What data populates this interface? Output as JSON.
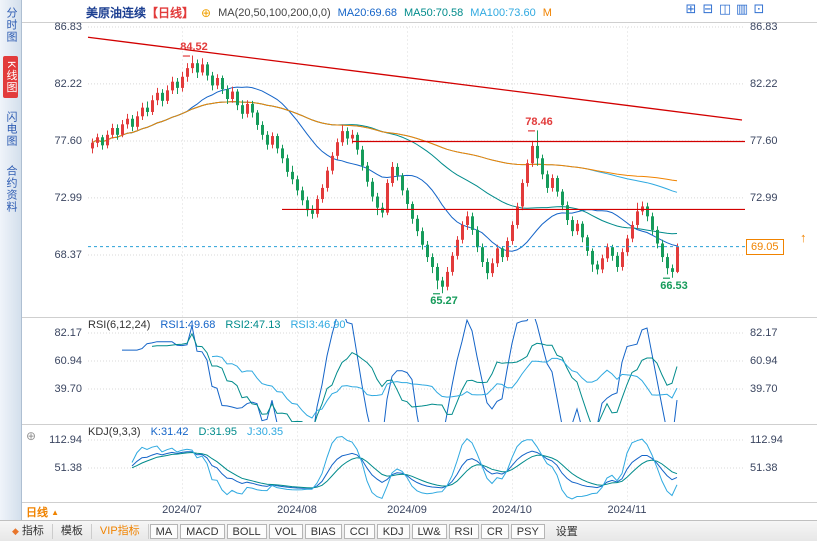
{
  "colors": {
    "up": "#e23b3b",
    "down": "#159b5a",
    "ma20": "#1464c8",
    "ma50": "#008b8b",
    "ma100": "#2fa9e0",
    "ma200": "#f08300",
    "trend": "#d20000",
    "price_line": "#2aa0d8",
    "accent": "#f08300",
    "active_sidebar": "#e23b3b"
  },
  "icons": {
    "add": "⊕",
    "price_arrow": "↑",
    "period_arrow": "▲",
    "diamond": "◆",
    "layout": [
      "⊞",
      "⊟",
      "◫",
      "▥",
      "⊡"
    ]
  },
  "sidebar": {
    "items": [
      {
        "label": "分时图"
      },
      {
        "label": "K线图"
      },
      {
        "label": "闪电图"
      },
      {
        "label": "合约资料"
      }
    ]
  },
  "header": {
    "title": "美原油连续",
    "period": "【日线】",
    "indicator": "MA(20,50,100,200,0,0)",
    "ma20": "MA20:69.68",
    "ma50": "MA50:70.58",
    "ma100": "MA100:73.60",
    "ma200": "M"
  },
  "main_chart": {
    "axis_left": [
      "86.83",
      "82.22",
      "77.60",
      "72.99",
      "68.37"
    ],
    "axis_right": [
      "86.83",
      "82.22",
      "77.60",
      "72.99"
    ]
  },
  "rsi_panel": {
    "title": "RSI(6,12,24)",
    "rsi1": "RSI1:49.68",
    "rsi2": "RSI2:47.13",
    "rsi3": "RSI3:46.90",
    "axis": [
      "82.17",
      "60.94",
      "39.70"
    ]
  },
  "kdj_panel": {
    "title": "KDJ(9,3,3)",
    "k": "K:31.42",
    "d": "D:31.95",
    "j": "J:30.35",
    "axis": [
      "112.94",
      "51.38"
    ]
  },
  "x_axis": {
    "labels": [
      "2024/07",
      "2024/08",
      "2024/09",
      "2024/10",
      "2024/11"
    ]
  },
  "bottom_left": {
    "period": "日线"
  },
  "bottom_bar": {
    "tabs": [
      "指标",
      "模板",
      "VIP指标"
    ],
    "buttons": [
      "MA",
      "MACD",
      "BOLL",
      "VOL",
      "BIAS",
      "CCI",
      "KDJ",
      "LW&",
      "RSI",
      "CR",
      "PSY"
    ],
    "settings": "设置"
  },
  "chart_data": {
    "type": "candlestick",
    "title": "美原油连续 日线",
    "y_ticks": [
      86.83,
      82.22,
      77.6,
      72.99,
      68.37
    ],
    "rsi_ticks": [
      82.17,
      60.94,
      39.7
    ],
    "kdj_ticks": [
      112.94,
      51.38
    ],
    "x_ticks": [
      {
        "label": "2024/07",
        "index": 18
      },
      {
        "label": "2024/08",
        "index": 41
      },
      {
        "label": "2024/09",
        "index": 63
      },
      {
        "label": "2024/10",
        "index": 84
      },
      {
        "label": "2024/11",
        "index": 107
      }
    ],
    "current_price": 69.05,
    "key_points": [
      {
        "label": "84.52",
        "price": 84.52,
        "index": 20,
        "side": "above",
        "color": "up"
      },
      {
        "label": "78.46",
        "price": 78.46,
        "index": 89,
        "side": "above",
        "color": "up"
      },
      {
        "label": "65.27",
        "price": 65.27,
        "index": 70,
        "side": "below",
        "color": "down"
      },
      {
        "label": "66.53",
        "price": 66.53,
        "index": 116,
        "side": "below",
        "color": "down"
      }
    ],
    "ma_overlays": [
      {
        "name": "MA20",
        "period": 20
      },
      {
        "name": "MA50",
        "period": 50
      },
      {
        "name": "MA100",
        "period": 100
      },
      {
        "name": "MA200",
        "period": 200
      }
    ],
    "indicators": {
      "rsi_periods": [
        6,
        12,
        24
      ],
      "kdj_params": [
        9,
        3,
        3
      ]
    },
    "trendlines": [
      {
        "from_index": -1,
        "from_price": 86.0,
        "to_index": 130,
        "to_price": 79.3
      }
    ],
    "hlines": [
      {
        "price": 77.6,
        "from_index": 52
      },
      {
        "price": 72.1,
        "from_index": 38
      }
    ],
    "candles": [
      [
        77.0,
        77.8,
        76.6,
        77.45
      ],
      [
        77.45,
        78.2,
        77.1,
        77.9
      ],
      [
        77.9,
        78.1,
        76.9,
        77.25
      ],
      [
        77.25,
        78.45,
        77.0,
        78.1
      ],
      [
        78.1,
        79.0,
        77.8,
        78.65
      ],
      [
        78.65,
        78.95,
        77.7,
        78.1
      ],
      [
        78.1,
        79.3,
        77.9,
        78.95
      ],
      [
        78.95,
        79.8,
        78.6,
        79.4
      ],
      [
        79.4,
        79.7,
        78.4,
        78.75
      ],
      [
        78.75,
        80.0,
        78.5,
        79.6
      ],
      [
        79.6,
        80.7,
        79.3,
        80.3
      ],
      [
        80.3,
        80.8,
        79.6,
        79.95
      ],
      [
        79.95,
        81.3,
        79.7,
        80.9
      ],
      [
        80.9,
        81.9,
        80.5,
        81.5
      ],
      [
        81.5,
        81.8,
        80.4,
        80.85
      ],
      [
        80.85,
        82.1,
        80.6,
        81.7
      ],
      [
        81.7,
        82.8,
        81.4,
        82.4
      ],
      [
        82.4,
        82.7,
        81.4,
        81.9
      ],
      [
        81.9,
        83.2,
        81.6,
        82.8
      ],
      [
        82.8,
        83.9,
        82.4,
        83.5
      ],
      [
        83.5,
        84.52,
        83.1,
        83.9
      ],
      [
        83.9,
        84.2,
        82.7,
        83.15
      ],
      [
        83.15,
        84.3,
        82.9,
        83.8
      ],
      [
        83.8,
        84.0,
        82.5,
        82.9
      ],
      [
        82.9,
        83.2,
        81.7,
        82.1
      ],
      [
        82.1,
        83.0,
        81.8,
        82.7
      ],
      [
        82.7,
        82.9,
        81.4,
        81.8
      ],
      [
        81.8,
        82.1,
        80.6,
        81.0
      ],
      [
        81.0,
        82.0,
        80.7,
        81.6
      ],
      [
        81.6,
        81.8,
        80.1,
        80.5
      ],
      [
        80.5,
        80.9,
        79.4,
        79.8
      ],
      [
        79.8,
        80.9,
        79.5,
        80.6
      ],
      [
        80.6,
        80.85,
        79.5,
        79.9
      ],
      [
        79.9,
        80.1,
        78.5,
        78.9
      ],
      [
        78.9,
        79.2,
        77.7,
        78.1
      ],
      [
        78.1,
        78.4,
        76.9,
        77.3
      ],
      [
        77.3,
        78.3,
        77.0,
        78.0
      ],
      [
        78.0,
        78.2,
        76.6,
        77.0
      ],
      [
        77.0,
        77.3,
        75.8,
        76.2
      ],
      [
        76.2,
        76.5,
        74.7,
        75.1
      ],
      [
        75.1,
        75.6,
        74.1,
        74.5
      ],
      [
        74.5,
        74.8,
        73.2,
        73.6
      ],
      [
        73.6,
        73.9,
        72.4,
        72.8
      ],
      [
        72.8,
        73.1,
        71.5,
        72.0
      ],
      [
        72.0,
        72.4,
        71.3,
        71.7
      ],
      [
        71.7,
        73.2,
        71.4,
        72.9
      ],
      [
        72.9,
        74.1,
        72.6,
        73.8
      ],
      [
        73.8,
        75.5,
        73.5,
        75.2
      ],
      [
        75.2,
        76.7,
        74.9,
        76.4
      ],
      [
        76.4,
        77.8,
        76.1,
        77.5
      ],
      [
        77.5,
        78.9,
        77.2,
        78.4
      ],
      [
        78.4,
        78.7,
        77.3,
        77.8
      ],
      [
        77.8,
        78.5,
        77.4,
        78.1
      ],
      [
        78.1,
        78.3,
        76.5,
        76.9
      ],
      [
        76.9,
        77.2,
        75.2,
        75.6
      ],
      [
        75.6,
        75.9,
        73.9,
        74.3
      ],
      [
        74.3,
        74.6,
        72.7,
        73.1
      ],
      [
        73.1,
        73.4,
        71.6,
        72.2
      ],
      [
        72.2,
        72.6,
        71.4,
        71.8
      ],
      [
        71.8,
        74.5,
        71.6,
        74.2
      ],
      [
        74.2,
        75.9,
        73.9,
        75.5
      ],
      [
        75.5,
        75.8,
        74.4,
        74.8
      ],
      [
        74.8,
        75.0,
        73.2,
        73.6
      ],
      [
        73.6,
        73.8,
        72.1,
        72.5
      ],
      [
        72.5,
        72.7,
        70.9,
        71.3
      ],
      [
        71.3,
        71.6,
        69.9,
        70.3
      ],
      [
        70.3,
        70.6,
        68.8,
        69.2
      ],
      [
        69.2,
        69.5,
        67.8,
        68.2
      ],
      [
        68.2,
        68.5,
        66.9,
        67.4
      ],
      [
        67.4,
        67.7,
        65.6,
        66.3
      ],
      [
        66.3,
        66.6,
        65.27,
        65.8
      ],
      [
        65.8,
        67.4,
        65.5,
        67.0
      ],
      [
        67.0,
        68.6,
        66.7,
        68.3
      ],
      [
        68.3,
        69.9,
        68.0,
        69.6
      ],
      [
        69.6,
        71.1,
        69.3,
        70.8
      ],
      [
        70.8,
        71.9,
        70.4,
        71.5
      ],
      [
        71.5,
        71.8,
        70.0,
        70.4
      ],
      [
        70.4,
        70.7,
        68.6,
        69.0
      ],
      [
        69.0,
        69.3,
        67.4,
        67.8
      ],
      [
        67.8,
        68.1,
        66.4,
        66.9
      ],
      [
        66.9,
        68.1,
        66.6,
        67.7
      ],
      [
        67.7,
        69.2,
        67.4,
        68.9
      ],
      [
        68.9,
        69.1,
        67.8,
        68.2
      ],
      [
        68.2,
        69.8,
        67.9,
        69.5
      ],
      [
        69.5,
        71.1,
        69.2,
        70.8
      ],
      [
        70.8,
        72.6,
        70.5,
        72.3
      ],
      [
        72.3,
        74.5,
        72.0,
        74.2
      ],
      [
        74.2,
        76.1,
        73.9,
        75.8
      ],
      [
        75.8,
        77.6,
        75.5,
        77.2
      ],
      [
        77.2,
        78.46,
        75.6,
        76.2
      ],
      [
        76.2,
        76.5,
        74.5,
        74.9
      ],
      [
        74.9,
        75.2,
        73.4,
        73.8
      ],
      [
        73.8,
        74.9,
        73.5,
        74.6
      ],
      [
        74.6,
        74.8,
        73.1,
        73.5
      ],
      [
        73.5,
        73.7,
        72.0,
        72.4
      ],
      [
        72.4,
        72.7,
        70.8,
        71.2
      ],
      [
        71.2,
        71.5,
        69.9,
        70.3
      ],
      [
        70.3,
        71.2,
        70.0,
        70.9
      ],
      [
        70.9,
        71.1,
        69.4,
        69.8
      ],
      [
        69.8,
        70.0,
        68.3,
        68.7
      ],
      [
        68.7,
        68.9,
        67.0,
        67.6
      ],
      [
        67.6,
        67.9,
        66.8,
        67.2
      ],
      [
        67.2,
        68.4,
        66.9,
        68.1
      ],
      [
        68.1,
        69.3,
        67.8,
        69.0
      ],
      [
        69.0,
        69.2,
        67.9,
        68.3
      ],
      [
        68.3,
        68.6,
        67.0,
        67.4
      ],
      [
        67.4,
        68.9,
        67.1,
        68.6
      ],
      [
        68.6,
        70.0,
        68.3,
        69.7
      ],
      [
        69.7,
        71.1,
        69.4,
        70.8
      ],
      [
        70.8,
        72.6,
        70.5,
        71.9
      ],
      [
        71.9,
        72.7,
        71.6,
        72.3
      ],
      [
        72.3,
        72.6,
        71.1,
        71.5
      ],
      [
        71.5,
        71.8,
        70.0,
        70.4
      ],
      [
        70.4,
        70.7,
        68.9,
        69.3
      ],
      [
        69.3,
        69.6,
        67.8,
        68.2
      ],
      [
        68.2,
        68.5,
        66.8,
        67.3
      ],
      [
        67.3,
        67.6,
        66.53,
        67.0
      ],
      [
        67.0,
        69.3,
        66.9,
        69.05
      ]
    ]
  }
}
